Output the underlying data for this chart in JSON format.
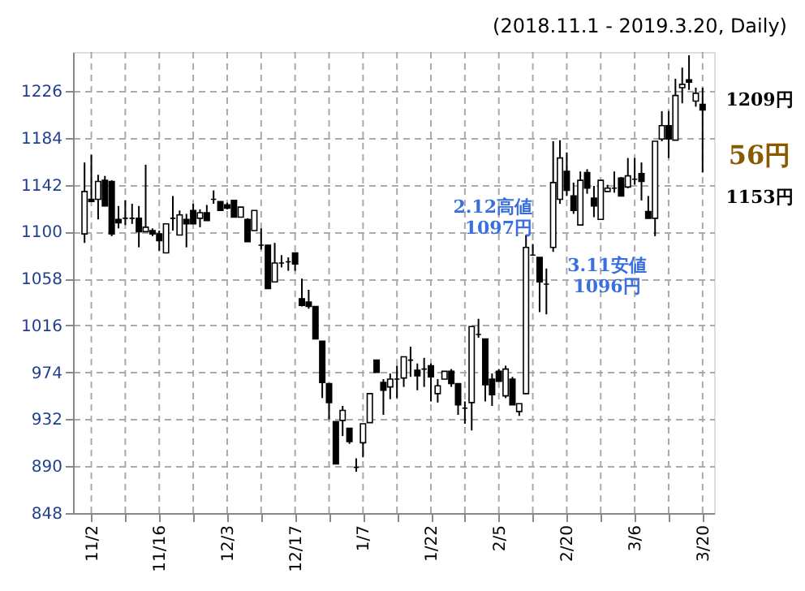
{
  "chart_data": {
    "type": "candlestick",
    "title": "(2018.11.1 - 2019.3.20, Daily)",
    "categories": [
      null,
      "11/2",
      null,
      null,
      null,
      null,
      null,
      null,
      null,
      null,
      null,
      "11/16",
      null,
      null,
      null,
      null,
      null,
      null,
      null,
      null,
      null,
      "12/3",
      null,
      null,
      null,
      null,
      null,
      null,
      null,
      null,
      null,
      "12/17",
      null,
      null,
      null,
      null,
      null,
      null,
      null,
      null,
      null,
      "1/7",
      null,
      null,
      null,
      null,
      null,
      null,
      null,
      null,
      null,
      "1/22",
      null,
      null,
      null,
      null,
      null,
      null,
      null,
      null,
      null,
      "2/5",
      null,
      null,
      null,
      null,
      null,
      null,
      null,
      null,
      null,
      "2/20",
      null,
      null,
      null,
      null,
      null,
      null,
      null,
      null,
      null,
      "3/6",
      null,
      null,
      null,
      null,
      null,
      null,
      null,
      null,
      null,
      "3/20"
    ],
    "ohlc": [
      [
        1098,
        1162,
        1090,
        1136
      ],
      [
        1129,
        1169,
        1127,
        1127
      ],
      [
        1129,
        1151,
        1111,
        1145
      ],
      [
        1146,
        1150,
        1123,
        1123
      ],
      [
        1145,
        1146,
        1096,
        1098
      ],
      [
        1111,
        1123,
        1103,
        1108
      ],
      [
        1112,
        1128,
        1106,
        1112
      ],
      [
        1112,
        1125,
        1107,
        1112
      ],
      [
        1112,
        1123,
        1086,
        1100
      ],
      [
        1100,
        1160,
        1100,
        1104
      ],
      [
        1101,
        1103,
        1096,
        1098
      ],
      [
        1098,
        1101,
        1083,
        1092
      ],
      [
        1081,
        1107,
        1081,
        1107
      ],
      [
        1112,
        1132,
        1101,
        1112
      ],
      [
        1097,
        1119,
        1097,
        1115
      ],
      [
        1111,
        1116,
        1086,
        1107
      ],
      [
        1119,
        1125,
        1107,
        1107
      ],
      [
        1112,
        1120,
        1104,
        1117
      ],
      [
        1117,
        1124,
        1110,
        1110
      ],
      [
        1129,
        1137,
        1125,
        1129
      ],
      [
        1127,
        1127,
        1119,
        1119
      ],
      [
        1124,
        1126,
        1120,
        1121
      ],
      [
        1128,
        1128,
        1113,
        1113
      ],
      [
        1113,
        1122,
        1113,
        1122
      ],
      [
        1111,
        1112,
        1091,
        1091
      ],
      [
        1101,
        1119,
        1101,
        1119
      ],
      [
        1088,
        1103,
        1084,
        1088
      ],
      [
        1088,
        1088,
        1049,
        1049
      ],
      [
        1055,
        1090,
        1055,
        1072
      ],
      [
        1072,
        1079,
        1068,
        1072
      ],
      [
        1073,
        1077,
        1065,
        1073
      ],
      [
        1081,
        1081,
        1065,
        1071
      ],
      [
        1040,
        1058,
        1033,
        1034
      ],
      [
        1037,
        1048,
        1031,
        1033
      ],
      [
        1033,
        1033,
        1004,
        1004
      ],
      [
        1002,
        1002,
        951,
        965
      ],
      [
        964,
        964,
        932,
        947
      ],
      [
        930,
        930,
        892,
        892
      ],
      [
        931,
        944,
        917,
        940
      ],
      [
        924,
        924,
        910,
        912
      ],
      [
        889,
        897,
        885,
        889
      ],
      [
        911,
        928,
        898,
        928
      ],
      [
        929,
        955,
        929,
        955
      ],
      [
        985,
        985,
        974,
        974
      ],
      [
        965,
        968,
        936,
        958
      ],
      [
        961,
        973,
        950,
        968
      ],
      [
        968,
        980,
        951,
        968
      ],
      [
        969,
        988,
        961,
        988
      ],
      [
        985,
        997,
        970,
        985
      ],
      [
        976,
        982,
        958,
        971
      ],
      [
        977,
        987,
        961,
        977
      ],
      [
        980,
        982,
        948,
        970
      ],
      [
        955,
        968,
        947,
        962
      ],
      [
        968,
        975,
        968,
        975
      ],
      [
        975,
        977,
        961,
        964
      ],
      [
        964,
        964,
        936,
        945
      ],
      [
        942,
        948,
        928,
        942
      ],
      [
        947,
        1015,
        922,
        1015
      ],
      [
        1008,
        1022,
        1005,
        1008
      ],
      [
        1004,
        1004,
        948,
        963
      ],
      [
        968,
        973,
        944,
        954
      ],
      [
        975,
        977,
        966,
        966
      ],
      [
        953,
        980,
        951,
        977
      ],
      [
        968,
        970,
        945,
        945
      ],
      [
        939,
        946,
        935,
        946
      ],
      [
        955,
        1097,
        955,
        1086
      ],
      [
        1079,
        1089,
        1079,
        1079
      ],
      [
        1077,
        1077,
        1028,
        1055
      ],
      [
        1053,
        1067,
        1026,
        1053
      ],
      [
        1086,
        1181,
        1082,
        1144
      ],
      [
        1129,
        1182,
        1125,
        1166
      ],
      [
        1154,
        1171,
        1132,
        1137
      ],
      [
        1132,
        1144,
        1116,
        1119
      ],
      [
        1106,
        1154,
        1106,
        1146
      ],
      [
        1153,
        1156,
        1134,
        1139
      ],
      [
        1130,
        1141,
        1113,
        1123
      ],
      [
        1111,
        1146,
        1111,
        1146
      ],
      [
        1136,
        1142,
        1136,
        1139
      ],
      [
        1139,
        1154,
        1135,
        1139
      ],
      [
        1148,
        1149,
        1132,
        1132
      ],
      [
        1140,
        1166,
        1139,
        1150
      ],
      [
        1147,
        1166,
        1142,
        1147
      ],
      [
        1152,
        1162,
        1128,
        1145
      ],
      [
        1118,
        1132,
        1112,
        1112
      ],
      [
        1112,
        1181,
        1096,
        1181
      ],
      [
        1183,
        1208,
        1181,
        1195
      ],
      [
        1195,
        1208,
        1166,
        1183
      ],
      [
        1182,
        1237,
        1182,
        1222
      ],
      [
        1229,
        1247,
        1215,
        1232
      ],
      [
        1236,
        1258,
        1227,
        1234
      ],
      [
        1217,
        1229,
        1212,
        1224
      ],
      [
        1214,
        1229,
        1153,
        1209
      ]
    ],
    "ylim": [
      848,
      1261
    ],
    "yticks": [
      848,
      890,
      932,
      974,
      1016,
      1058,
      1100,
      1142,
      1184,
      1226
    ],
    "grid": true,
    "annotations": [
      "2.12高値\n1097円",
      "3.11安値\n1096円",
      "1209円",
      "56円",
      "1153円"
    ]
  }
}
